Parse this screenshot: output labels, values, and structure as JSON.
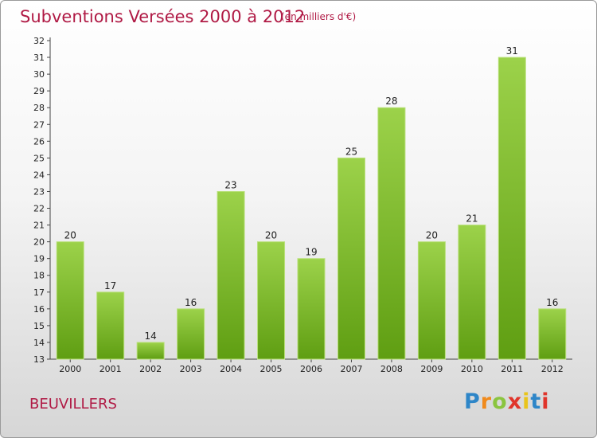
{
  "title": "Subventions Versées 2000 à 2012",
  "subtitle": "(en milliers d'€)",
  "commune": "BEUVILLERS",
  "logo": {
    "letters": [
      "P",
      "r",
      "o",
      "x",
      "i",
      "t",
      "i"
    ],
    "colors": [
      "#2e86c8",
      "#f08a1c",
      "#8bc53f",
      "#e0342a",
      "#e9c41a",
      "#2e86c8",
      "#e0342a"
    ]
  },
  "colors": {
    "accent": "#b01a45",
    "bar_top": "#9cd24a",
    "bar_bottom": "#5f9e12"
  },
  "chart_data": {
    "type": "bar",
    "title": "Subventions Versées 2000 à 2012",
    "subtitle": "(en milliers d'€)",
    "categories": [
      "2000",
      "2001",
      "2002",
      "2003",
      "2004",
      "2005",
      "2006",
      "2007",
      "2008",
      "2009",
      "2010",
      "2011",
      "2012"
    ],
    "values": [
      20,
      17,
      14,
      16,
      23,
      20,
      19,
      25,
      28,
      20,
      21,
      31,
      16
    ],
    "ylim": [
      13,
      32
    ],
    "yticks": [
      13,
      14,
      15,
      16,
      17,
      18,
      19,
      20,
      21,
      22,
      23,
      24,
      25,
      26,
      27,
      28,
      29,
      30,
      31,
      32
    ],
    "grid": false,
    "data_labels": true
  }
}
